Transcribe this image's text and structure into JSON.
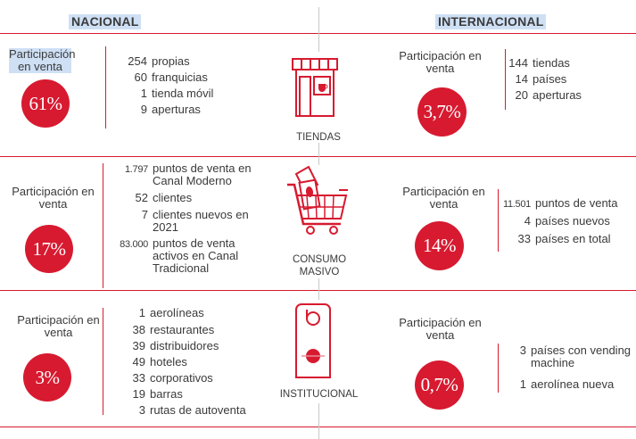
{
  "headers": {
    "nacional": "NACIONAL",
    "internacional": "INTERNACIONAL"
  },
  "participacion_label": "Participación en venta",
  "sections": [
    {
      "category": "TIENDAS",
      "icon": "store-icon",
      "nacional": {
        "percent": "61%",
        "stats": [
          {
            "num": "254",
            "text": "propias"
          },
          {
            "num": "60",
            "text": "franquicias"
          },
          {
            "num": "1",
            "text": "tienda móvil"
          },
          {
            "num": "9",
            "text": "aperturas"
          }
        ]
      },
      "internacional": {
        "percent": "3,7%",
        "stats": [
          {
            "num": "144",
            "text": "tiendas"
          },
          {
            "num": "14",
            "text": "países"
          },
          {
            "num": "20",
            "text": "aperturas"
          }
        ]
      }
    },
    {
      "category": "CONSUMO MASIVO",
      "icon": "shopping-cart-icon",
      "nacional": {
        "percent": "17%",
        "stats": [
          {
            "num": "1.797",
            "text": "puntos de venta en Canal Moderno"
          },
          {
            "num": "52",
            "text": "clientes"
          },
          {
            "num": "7",
            "text": "clientes nuevos en 2021"
          },
          {
            "num": "83.000",
            "text": "puntos de venta activos en Canal Tradicional"
          }
        ]
      },
      "internacional": {
        "percent": "14%",
        "stats": [
          {
            "num": "11.501",
            "text": "puntos de venta"
          },
          {
            "num": "4",
            "text": "países nuevos"
          },
          {
            "num": "33",
            "text": "países en total"
          }
        ]
      }
    },
    {
      "category": "INSTITUCIONAL",
      "icon": "door-hanger-icon",
      "nacional": {
        "percent": "3%",
        "stats": [
          {
            "num": "1",
            "text": "aerolíneas"
          },
          {
            "num": "38",
            "text": "restaurantes"
          },
          {
            "num": "39",
            "text": "distribuidores"
          },
          {
            "num": "49",
            "text": "hoteles"
          },
          {
            "num": "33",
            "text": "corporativos"
          },
          {
            "num": "19",
            "text": "barras"
          },
          {
            "num": "3",
            "text": "rutas de autoventa"
          }
        ]
      },
      "internacional": {
        "percent": "0,7%",
        "stats": [
          {
            "num": "3",
            "text": "países con vending machine"
          },
          {
            "num": "1",
            "text": "aerolínea nueva"
          }
        ]
      }
    }
  ],
  "colors": {
    "accent": "#d71a30",
    "text": "#3a3a3a",
    "header_highlight": "#cfe0f5"
  }
}
